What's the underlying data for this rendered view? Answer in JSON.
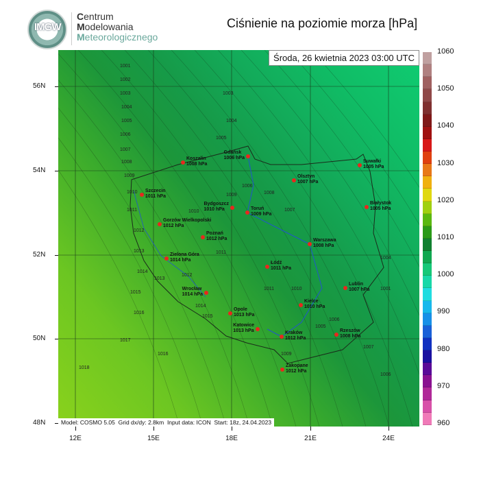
{
  "header": {
    "logo_text": "IMGW",
    "org_line1_initial": "C",
    "org_line1_rest": "entrum",
    "org_line2_initial": "M",
    "org_line2_rest": "odelowania",
    "org_line3_initial": "M",
    "org_line3_rest": "eteorologicznego",
    "title": "Ciśnienie na poziomie morza [hPa]"
  },
  "map": {
    "valid_time": "Środa, 26 kwietnia 2023 03:00 UTC",
    "model_info": "Model: COSMO 5.05  Grid dx/dy: 2.8km  Input data: ICON  Start: 18z, 24.04.2023",
    "lat_ticks": [
      "56N",
      "54N",
      "52N",
      "50N",
      "48N"
    ],
    "lon_ticks": [
      "12E",
      "15E",
      "18E",
      "21E",
      "24E"
    ],
    "cities": [
      {
        "name": "Koszalin",
        "value": "1008 hPa"
      },
      {
        "name": "Gdańsk",
        "value": "1006 hPa"
      },
      {
        "name": "Olsztyn",
        "value": "1007 hPa"
      },
      {
        "name": "Suwałki",
        "value": "1005 hPa"
      },
      {
        "name": "Szczecin",
        "value": "1011 hPa"
      },
      {
        "name": "Bydgoszcz",
        "value": "1010 hPa"
      },
      {
        "name": "Toruń",
        "value": "1009 hPa"
      },
      {
        "name": "Białystok",
        "value": "1005 hPa"
      },
      {
        "name": "Gorzów Wielkopolski",
        "value": "1012 hPa"
      },
      {
        "name": "Poznań",
        "value": "1012 hPa"
      },
      {
        "name": "Warszawa",
        "value": "1008 hPa"
      },
      {
        "name": "Zielona Góra",
        "value": "1014 hPa"
      },
      {
        "name": "Łódź",
        "value": "1011 hPa"
      },
      {
        "name": "Lublin",
        "value": "1007 hPa"
      },
      {
        "name": "Wrocław",
        "value": "1014 hPa"
      },
      {
        "name": "Kielce",
        "value": "1010 hPa"
      },
      {
        "name": "Opole",
        "value": "1013 hPa"
      },
      {
        "name": "Katowice",
        "value": "1013 hPa"
      },
      {
        "name": "Kraków",
        "value": "1012 hPa"
      },
      {
        "name": "Rzeszów",
        "value": "1008 hPa"
      },
      {
        "name": "Zakopane",
        "value": "1012 hPa"
      }
    ],
    "isobar_labels": [
      "1001",
      "1002",
      "1003",
      "1004",
      "1005",
      "1006",
      "1007",
      "1008",
      "1009",
      "1010",
      "1011",
      "1012",
      "1013",
      "1014",
      "1015",
      "1016",
      "1017",
      "1018",
      "1003",
      "1004",
      "1005",
      "1006",
      "1007",
      "1008",
      "1009",
      "1010",
      "1011",
      "1012",
      "1013",
      "1014",
      "1015",
      "1016",
      "1006",
      "1005",
      "1004",
      "1001",
      "1007",
      "1006",
      "1009",
      "1010",
      "1011"
    ]
  },
  "colorbar": {
    "labels": [
      "1060",
      "1050",
      "1040",
      "1030",
      "1020",
      "1010",
      "1000",
      "990",
      "980",
      "970",
      "960"
    ],
    "colors": [
      "#f07ab8",
      "#d850a8",
      "#b02898",
      "#8a1090",
      "#5a0a98",
      "#1a10a0",
      "#1030c0",
      "#1a60d8",
      "#1890e8",
      "#18b8ec",
      "#20dce0",
      "#18d8a8",
      "#16c878",
      "#10a850",
      "#118030",
      "#2a9a18",
      "#5ab810",
      "#a0d010",
      "#e0d810",
      "#f0b010",
      "#e87818",
      "#e04010",
      "#d81818",
      "#a01010",
      "#801818",
      "#803030",
      "#904848",
      "#a06060",
      "#b08080",
      "#c0a0a0"
    ]
  }
}
